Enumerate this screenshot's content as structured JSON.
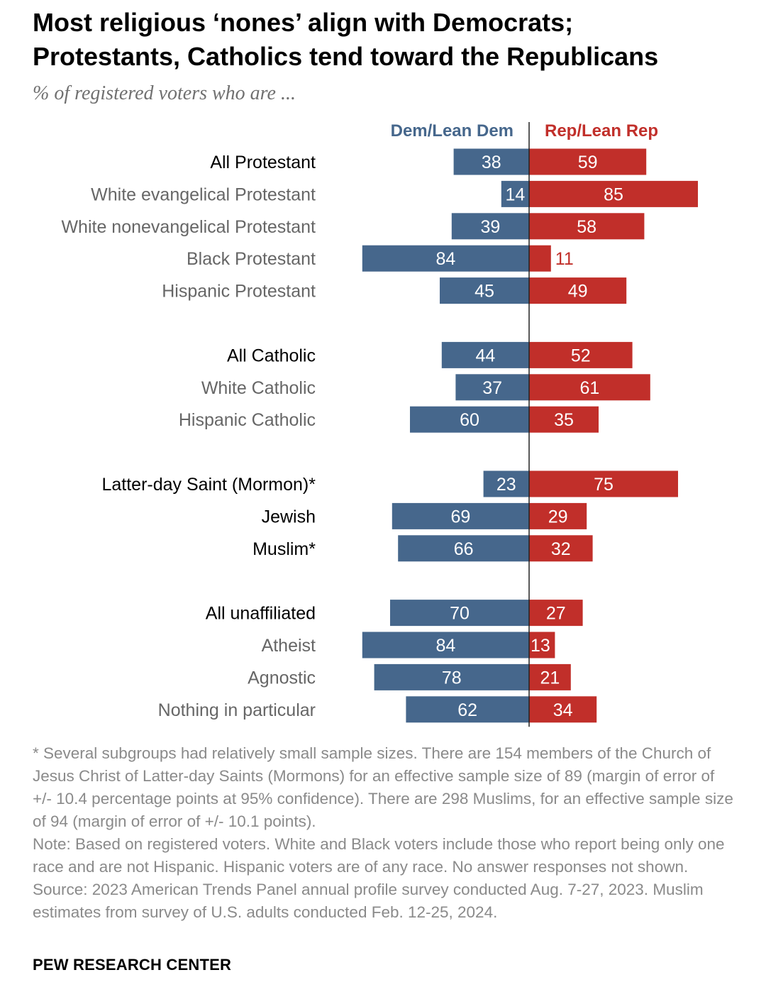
{
  "header": {
    "title_line1": "Most religious ‘nones’ align with Democrats;",
    "title_line2": "Protestants, Catholics tend toward the Republicans",
    "subtitle": "% of registered voters who are ..."
  },
  "chart_data": {
    "type": "bar",
    "orientation": "horizontal-diverging",
    "series": [
      {
        "name": "Dem/Lean Dem",
        "color": "#46678c"
      },
      {
        "name": "Rep/Lean Rep",
        "color": "#c12f2a"
      }
    ],
    "rows": [
      {
        "label": "All Protestant",
        "dem": 38,
        "rep": 59,
        "group": 1,
        "emphasis": true
      },
      {
        "label": "White evangelical Protestant",
        "dem": 14,
        "rep": 85,
        "group": 1,
        "emphasis": false
      },
      {
        "label": "White nonevangelical Protestant",
        "dem": 39,
        "rep": 58,
        "group": 1,
        "emphasis": false
      },
      {
        "label": "Black Protestant",
        "dem": 84,
        "rep": 11,
        "group": 1,
        "emphasis": false
      },
      {
        "label": "Hispanic Protestant",
        "dem": 45,
        "rep": 49,
        "group": 1,
        "emphasis": false
      },
      {
        "label": "All Catholic",
        "dem": 44,
        "rep": 52,
        "group": 2,
        "emphasis": true
      },
      {
        "label": "White Catholic",
        "dem": 37,
        "rep": 61,
        "group": 2,
        "emphasis": false
      },
      {
        "label": "Hispanic Catholic",
        "dem": 60,
        "rep": 35,
        "group": 2,
        "emphasis": false
      },
      {
        "label": "Latter-day Saint (Mormon)*",
        "dem": 23,
        "rep": 75,
        "group": 3,
        "emphasis": true
      },
      {
        "label": "Jewish",
        "dem": 69,
        "rep": 29,
        "group": 3,
        "emphasis": true
      },
      {
        "label": "Muslim*",
        "dem": 66,
        "rep": 32,
        "group": 3,
        "emphasis": true
      },
      {
        "label": "All unaffiliated",
        "dem": 70,
        "rep": 27,
        "group": 4,
        "emphasis": true
      },
      {
        "label": "Atheist",
        "dem": 84,
        "rep": 13,
        "group": 4,
        "emphasis": false
      },
      {
        "label": "Agnostic",
        "dem": 78,
        "rep": 21,
        "group": 4,
        "emphasis": false
      },
      {
        "label": "Nothing in particular",
        "dem": 62,
        "rep": 34,
        "group": 4,
        "emphasis": false
      }
    ],
    "xlim": [
      0,
      100
    ],
    "grid": false
  },
  "colors": {
    "dem": "#46678c",
    "rep": "#c12f2a",
    "label_emphasis": "#000000",
    "label_muted": "#666666",
    "notes": "#8a8a8a"
  },
  "notes": {
    "footnote": "* Several subgroups had relatively small sample sizes. There are 154 members of the Church of Jesus Christ of Latter-day Saints (Mormons) for an effective sample size of 89 (margin of error of +/- 10.4 percentage points at 95% confidence). There are 298 Muslims, for an effective sample size of 94 (margin of error of +/- 10.1 points).",
    "note": "Note: Based on registered voters. White and Black voters include those who report being only one race and are not Hispanic. Hispanic voters are of any race. No answer responses not shown.",
    "source": "Source: 2023 American Trends Panel annual profile survey conducted Aug. 7-27, 2023. Muslim estimates from survey of U.S. adults conducted Feb. 12-25, 2024."
  },
  "footer": {
    "brand": "PEW RESEARCH CENTER"
  }
}
